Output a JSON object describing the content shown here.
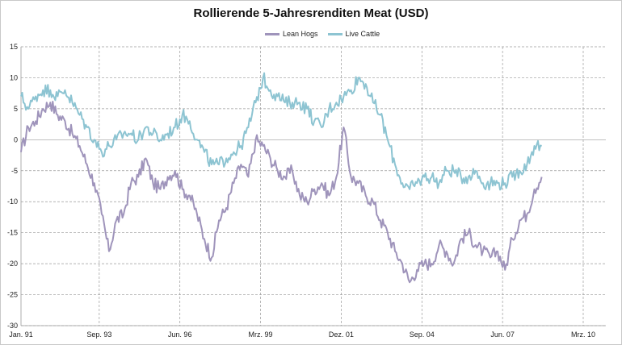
{
  "chart_data": {
    "type": "line",
    "title": "Rollierende 5-Jahresrenditen Meat (USD)",
    "xlabel": "",
    "ylabel": "",
    "ylim": [
      -30,
      15
    ],
    "yticks": [
      15,
      10,
      5,
      0,
      -5,
      -10,
      -15,
      -20,
      -25,
      -30
    ],
    "x_tick_labels": [
      "Jan. 91",
      "Sep. 93",
      "Jun. 96",
      "Mrz. 99",
      "Dez. 01",
      "Sep. 04",
      "Jun. 07",
      "Mrz. 10"
    ],
    "x_start": "1991-01",
    "x_end": "2010-03",
    "grid": true,
    "legend_position": "top",
    "series": [
      {
        "name": "Lean Hogs",
        "color": "#9f94bb",
        "x": [
          "1991-01",
          "1991-04",
          "1991-07",
          "1991-10",
          "1992-01",
          "1992-04",
          "1992-07",
          "1992-10",
          "1993-01",
          "1993-04",
          "1993-07",
          "1993-10",
          "1994-01",
          "1994-04",
          "1994-07",
          "1994-10",
          "1995-01",
          "1995-04",
          "1995-07",
          "1995-10",
          "1996-01",
          "1996-04",
          "1996-07",
          "1996-10",
          "1997-01",
          "1997-04",
          "1997-07",
          "1997-10",
          "1998-01",
          "1998-04",
          "1998-07",
          "1998-10",
          "1999-01",
          "1999-04",
          "1999-07",
          "1999-10",
          "2000-01",
          "2000-04",
          "2000-07",
          "2000-10",
          "2001-01",
          "2001-04",
          "2001-07",
          "2001-10",
          "2002-01",
          "2002-04",
          "2002-07",
          "2002-10",
          "2003-01",
          "2003-04",
          "2003-07",
          "2003-10",
          "2004-01",
          "2004-04",
          "2004-07",
          "2004-10",
          "2005-01",
          "2005-04",
          "2005-07",
          "2005-10",
          "2006-01",
          "2006-04",
          "2006-07",
          "2006-10",
          "2007-01",
          "2007-04",
          "2007-07",
          "2007-10",
          "2008-01",
          "2008-04",
          "2008-07",
          "2008-10"
        ],
        "values": [
          -2,
          2,
          3,
          5,
          6,
          4,
          3,
          1,
          -1,
          -4,
          -7,
          -12,
          -18,
          -13,
          -12,
          -7,
          -6,
          -3,
          -7,
          -8,
          -6,
          -5,
          -8,
          -9,
          -12,
          -16,
          -19,
          -13,
          -11,
          -7,
          -4,
          -6,
          0,
          -1,
          -3,
          -5,
          -6,
          -5,
          -9,
          -10,
          -8,
          -7,
          -9,
          -6,
          2,
          -6,
          -7,
          -9,
          -10,
          -13,
          -15,
          -18,
          -20,
          -23,
          -21,
          -20,
          -20,
          -17,
          -18,
          -20,
          -16,
          -15,
          -17,
          -18,
          -19,
          -18,
          -21,
          -16,
          -13,
          -12,
          -8,
          -6
        ]
      },
      {
        "name": "Live Cattle",
        "color": "#8dc4d2",
        "x": [
          "1991-01",
          "1991-04",
          "1991-07",
          "1991-10",
          "1992-01",
          "1992-04",
          "1992-07",
          "1992-10",
          "1993-01",
          "1993-04",
          "1993-07",
          "1993-10",
          "1994-01",
          "1994-04",
          "1994-07",
          "1994-10",
          "1995-01",
          "1995-04",
          "1995-07",
          "1995-10",
          "1996-01",
          "1996-04",
          "1996-07",
          "1996-10",
          "1997-01",
          "1997-04",
          "1997-07",
          "1997-10",
          "1998-01",
          "1998-04",
          "1998-07",
          "1998-10",
          "1999-01",
          "1999-04",
          "1999-07",
          "1999-10",
          "2000-01",
          "2000-04",
          "2000-07",
          "2000-10",
          "2001-01",
          "2001-04",
          "2001-07",
          "2001-10",
          "2002-01",
          "2002-04",
          "2002-07",
          "2002-10",
          "2003-01",
          "2003-04",
          "2003-07",
          "2003-10",
          "2004-01",
          "2004-04",
          "2004-07",
          "2004-10",
          "2005-01",
          "2005-04",
          "2005-07",
          "2005-10",
          "2006-01",
          "2006-04",
          "2006-07",
          "2006-10",
          "2007-01",
          "2007-04",
          "2007-07",
          "2007-10",
          "2008-01",
          "2008-04",
          "2008-07",
          "2008-10"
        ],
        "values": [
          7,
          5,
          7,
          8,
          8,
          7,
          8,
          6,
          4,
          2,
          0,
          -2,
          -1,
          0,
          1,
          1,
          0,
          2,
          1,
          0,
          1,
          2,
          4,
          3,
          0,
          -2,
          -4,
          -4,
          -3,
          -2,
          -1,
          2,
          6,
          10,
          8,
          7,
          6,
          6,
          6,
          5,
          3,
          2,
          5,
          6,
          7,
          8,
          10,
          9,
          6,
          4,
          0,
          -4,
          -7,
          -8,
          -7,
          -6,
          -6,
          -7,
          -5,
          -5,
          -6,
          -6,
          -5,
          -7,
          -7,
          -7,
          -7,
          -6,
          -5,
          -4,
          -1,
          -1
        ]
      }
    ]
  }
}
